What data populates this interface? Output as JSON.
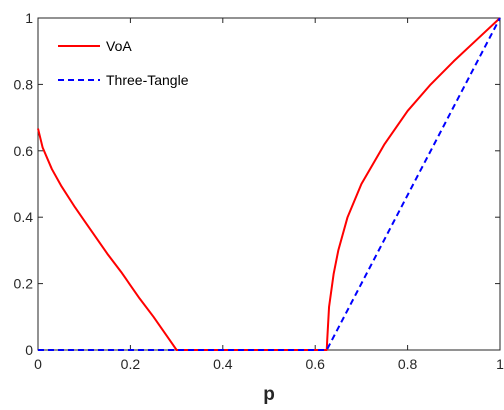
{
  "chart_data": {
    "type": "line",
    "title": "",
    "xlabel": "p",
    "ylabel": "",
    "xlim": [
      0,
      1
    ],
    "ylim": [
      0,
      1
    ],
    "x_ticks": [
      "0",
      "0.2",
      "0.4",
      "0.6",
      "0.8",
      "1"
    ],
    "y_ticks": [
      "0",
      "0.2",
      "0.4",
      "0.6",
      "0.8",
      "1"
    ],
    "grid": false,
    "legend_position": "top-left",
    "series": [
      {
        "name": "VoA",
        "color": "#ff0000",
        "style": "solid",
        "x": [
          0,
          0.01,
          0.03,
          0.05,
          0.08,
          0.1,
          0.13,
          0.15,
          0.18,
          0.2,
          0.22,
          0.25,
          0.27,
          0.29,
          0.3,
          0.4,
          0.5,
          0.6,
          0.625,
          0.626,
          0.63,
          0.64,
          0.65,
          0.67,
          0.7,
          0.75,
          0.8,
          0.85,
          0.9,
          0.95,
          1.0
        ],
        "y": [
          0.667,
          0.61,
          0.545,
          0.495,
          0.43,
          0.39,
          0.33,
          0.29,
          0.235,
          0.195,
          0.155,
          0.1,
          0.06,
          0.02,
          0.0,
          0.0,
          0.0,
          0.0,
          0.0,
          0.03,
          0.13,
          0.23,
          0.3,
          0.4,
          0.5,
          0.62,
          0.72,
          0.8,
          0.87,
          0.935,
          1.0
        ]
      },
      {
        "name": "Three-Tangle",
        "color": "#0000ff",
        "style": "dashed",
        "x": [
          0,
          0.625,
          1.0
        ],
        "y": [
          0,
          0,
          1.0
        ]
      }
    ]
  }
}
